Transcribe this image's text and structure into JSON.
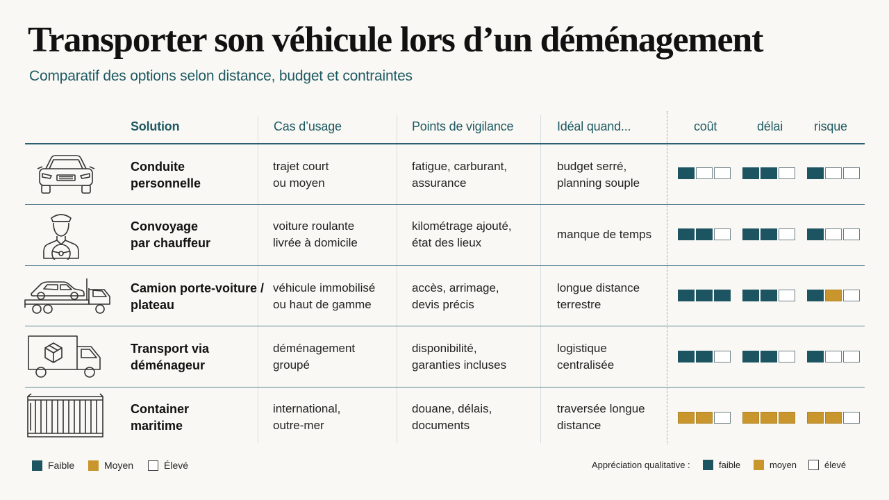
{
  "title": "Transporter son véhicule lors d’un déménagement",
  "subtitle": "Comparatif des options selon distance, budget et contraintes",
  "headers": {
    "solution": "Solution",
    "usage": "Cas d’usage",
    "vigilance": "Points de vigilance",
    "ideal": "Idéal quand...",
    "cout": "coût",
    "delai": "délai",
    "risque": "risque"
  },
  "rows": [
    {
      "icon": "car-icon",
      "solution": [
        "Conduite",
        "personnelle"
      ],
      "usage": [
        "trajet court",
        "ou moyen"
      ],
      "vigilance": [
        "fatigue, carburant,",
        "assurance"
      ],
      "ideal": [
        "budget serré,",
        "planning souple"
      ],
      "cout": [
        "faible",
        "eleve",
        "eleve"
      ],
      "delai": [
        "faible",
        "faible",
        "eleve"
      ],
      "risque": [
        "faible",
        "eleve",
        "eleve"
      ]
    },
    {
      "icon": "chauffeur-icon",
      "solution": [
        "Convoyage",
        "par chauffeur"
      ],
      "usage": [
        "voiture roulante",
        "livrée à domicile"
      ],
      "vigilance": [
        "kilométrage ajouté,",
        "état des lieux"
      ],
      "ideal": [
        "manque de temps"
      ],
      "cout": [
        "faible",
        "faible",
        "eleve"
      ],
      "delai": [
        "faible",
        "faible",
        "eleve"
      ],
      "risque": [
        "faible",
        "eleve",
        "eleve"
      ]
    },
    {
      "icon": "car-carrier-truck-icon",
      "solution": [
        "Camion porte-voiture /",
        "plateau"
      ],
      "usage": [
        "véhicule immobilisé",
        "ou haut de gamme"
      ],
      "vigilance": [
        "accès, arrimage,",
        "devis précis"
      ],
      "ideal": [
        "longue distance",
        "terrestre"
      ],
      "cout": [
        "faible",
        "faible",
        "faible"
      ],
      "delai": [
        "faible",
        "faible",
        "eleve"
      ],
      "risque": [
        "faible",
        "moyen",
        "eleve"
      ]
    },
    {
      "icon": "moving-truck-icon",
      "solution": [
        "Transport via",
        "déménageur"
      ],
      "usage": [
        "déménagement",
        "groupé"
      ],
      "vigilance": [
        "disponibilité,",
        "garanties incluses"
      ],
      "ideal": [
        "logistique",
        "centralisée"
      ],
      "cout": [
        "faible",
        "faible",
        "eleve"
      ],
      "delai": [
        "faible",
        "faible",
        "eleve"
      ],
      "risque": [
        "faible",
        "eleve",
        "eleve"
      ]
    },
    {
      "icon": "shipping-container-icon",
      "solution": [
        "Container",
        "maritime"
      ],
      "usage": [
        "international,",
        "outre-mer"
      ],
      "vigilance": [
        "douane, délais,",
        "documents"
      ],
      "ideal": [
        "traversée longue",
        "distance"
      ],
      "cout": [
        "moyen",
        "moyen",
        "eleve"
      ],
      "delai": [
        "moyen",
        "moyen",
        "moyen"
      ],
      "risque": [
        "moyen",
        "moyen",
        "eleve"
      ]
    }
  ],
  "legend_left": {
    "faible": "Faible",
    "moyen": "Moyen",
    "eleve": "Élevé"
  },
  "legend_right": {
    "label": "Appréciation qualitative :",
    "faible": "faible",
    "moyen": "moyen",
    "eleve": "élevé"
  },
  "colors": {
    "faible": "#1d5462",
    "moyen": "#c9962e",
    "eleve": "#ffffff",
    "accent": "#1e5a63"
  }
}
